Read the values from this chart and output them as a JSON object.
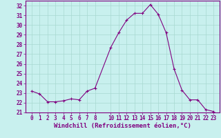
{
  "x": [
    0,
    1,
    2,
    3,
    4,
    5,
    6,
    7,
    8,
    10,
    11,
    12,
    13,
    14,
    15,
    16,
    17,
    18,
    19,
    20,
    21,
    22,
    23
  ],
  "y": [
    23.2,
    22.9,
    22.1,
    22.1,
    22.2,
    22.4,
    22.3,
    23.2,
    23.5,
    27.7,
    29.2,
    30.5,
    31.2,
    31.2,
    32.1,
    31.1,
    29.2,
    25.5,
    23.3,
    22.3,
    22.3,
    21.3,
    21.1
  ],
  "line_color": "#800080",
  "marker_color": "#800080",
  "bg_color": "#c8f0ee",
  "grid_color": "#a8d8d0",
  "text_color": "#800080",
  "xlabel": "Windchill (Refroidissement éolien,°C)",
  "ylim": [
    21,
    32.5
  ],
  "yticks": [
    21,
    22,
    23,
    24,
    25,
    26,
    27,
    28,
    29,
    30,
    31,
    32
  ],
  "xticks": [
    0,
    1,
    2,
    3,
    4,
    5,
    6,
    7,
    8,
    10,
    11,
    12,
    13,
    14,
    15,
    16,
    17,
    18,
    19,
    20,
    21,
    22,
    23
  ],
  "tick_fontsize": 5.5,
  "label_fontsize": 6.5
}
